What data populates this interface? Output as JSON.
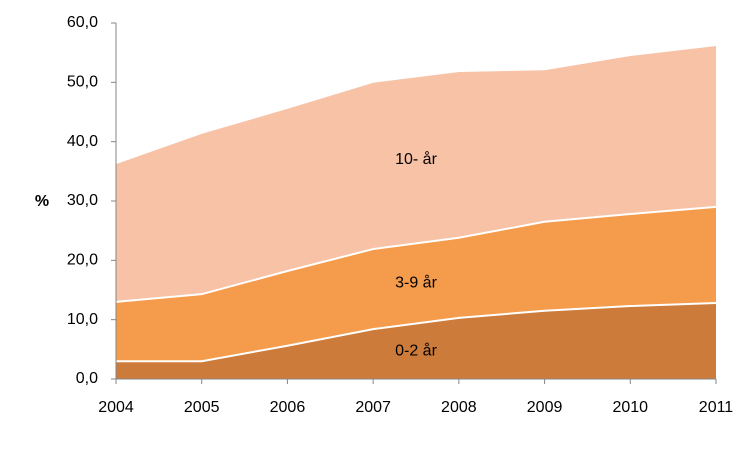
{
  "chart_data": {
    "type": "stacked-area",
    "y_label": "%",
    "categories": [
      "2004",
      "2005",
      "2006",
      "2007",
      "2008",
      "2009",
      "2010",
      "2011"
    ],
    "series": [
      {
        "name": "0-2 år",
        "color": "#cd7b3a",
        "values": [
          3.0,
          3.0,
          5.6,
          8.4,
          10.3,
          11.5,
          12.3,
          12.8
        ]
      },
      {
        "name": "3-9 år",
        "color": "#f59b4c",
        "values": [
          10.0,
          11.3,
          12.6,
          13.5,
          13.5,
          15.0,
          15.5,
          16.2
        ]
      },
      {
        "name": "10- år",
        "color": "#f8c2a6",
        "values": [
          23.4,
          27.2,
          27.5,
          28.2,
          28.1,
          25.7,
          26.8,
          27.3
        ]
      }
    ],
    "ylim": [
      0,
      60
    ],
    "yticks": [
      {
        "value": 0,
        "label": "0,0"
      },
      {
        "value": 10,
        "label": "10,0"
      },
      {
        "value": 20,
        "label": "20,0"
      },
      {
        "value": 30,
        "label": "30,0"
      },
      {
        "value": 40,
        "label": "40,0"
      },
      {
        "value": 50,
        "label": "50,0"
      },
      {
        "value": 60,
        "label": "60,0"
      }
    ]
  }
}
